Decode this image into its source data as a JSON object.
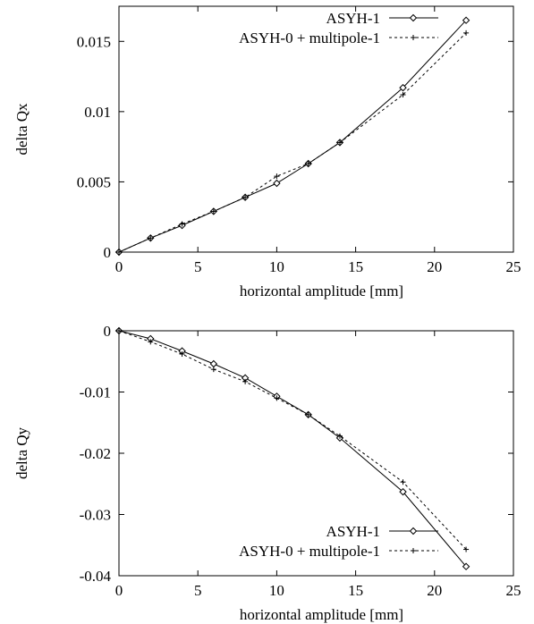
{
  "chart_data": [
    {
      "type": "line",
      "title": "",
      "xlabel": "horizontal amplitude [mm]",
      "ylabel": "delta Qx",
      "xlim": [
        0,
        25
      ],
      "ylim": [
        0,
        0.0175
      ],
      "xticks": [
        "0",
        "5",
        "10",
        "15",
        "20",
        "25"
      ],
      "yticks": [
        "0",
        "0.005",
        "0.01",
        "0.015"
      ],
      "grid": false,
      "legend_position": "top-right",
      "series": [
        {
          "name": "ASYH-1",
          "marker": "diamond",
          "line": "solid",
          "x": [
            0,
            2,
            4,
            6,
            8,
            10,
            12,
            14,
            18,
            22
          ],
          "y": [
            0,
            0.001,
            0.0019,
            0.0029,
            0.0039,
            0.0049,
            0.0063,
            0.0078,
            0.0117,
            0.0165
          ]
        },
        {
          "name": "ASYH-0 + multipole-1",
          "marker": "plus",
          "line": "dashed",
          "x": [
            0,
            2,
            4,
            6,
            8,
            10,
            12,
            14,
            18,
            22
          ],
          "y": [
            0,
            0.001,
            0.002,
            0.0029,
            0.0039,
            0.0054,
            0.0063,
            0.0078,
            0.0112,
            0.0156
          ]
        }
      ]
    },
    {
      "type": "line",
      "title": "",
      "xlabel": "horizontal amplitude [mm]",
      "ylabel": "delta Qy",
      "xlim": [
        0,
        25
      ],
      "ylim": [
        -0.04,
        0
      ],
      "xticks": [
        "0",
        "5",
        "10",
        "15",
        "20",
        "25"
      ],
      "yticks": [
        "0",
        "-0.01",
        "-0.02",
        "-0.03",
        "-0.04"
      ],
      "grid": false,
      "legend_position": "bottom-right",
      "series": [
        {
          "name": "ASYH-1",
          "marker": "diamond",
          "line": "solid",
          "x": [
            0,
            2,
            4,
            6,
            8,
            10,
            12,
            14,
            18,
            22
          ],
          "y": [
            0,
            -0.0013,
            -0.0033,
            -0.0054,
            -0.0077,
            -0.0107,
            -0.0137,
            -0.0175,
            -0.0263,
            -0.0385
          ]
        },
        {
          "name": "ASYH-0 + multipole-1",
          "marker": "plus",
          "line": "dashed",
          "x": [
            0,
            2,
            4,
            6,
            8,
            10,
            12,
            14,
            18,
            22
          ],
          "y": [
            0,
            -0.0018,
            -0.0038,
            -0.0063,
            -0.0083,
            -0.011,
            -0.0137,
            -0.0172,
            -0.0247,
            -0.0357
          ]
        }
      ]
    }
  ]
}
